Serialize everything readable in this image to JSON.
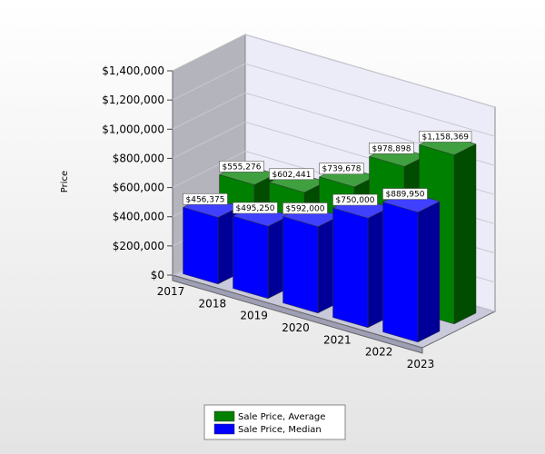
{
  "chart_data": {
    "type": "bar3d",
    "y_label": "Price",
    "xticks": [
      2017,
      2018,
      2019,
      2020,
      2021,
      2022,
      2023
    ],
    "ylim": [
      0,
      1400000
    ],
    "yticks": [
      {
        "value": 0,
        "label": "$0"
      },
      {
        "value": 200000,
        "label": "$200,000"
      },
      {
        "value": 400000,
        "label": "$400,000"
      },
      {
        "value": 600000,
        "label": "$600,000"
      },
      {
        "value": 800000,
        "label": "$800,000"
      },
      {
        "value": 1000000,
        "label": "$1,000,000"
      },
      {
        "value": 1200000,
        "label": "$1,200,000"
      },
      {
        "value": 1400000,
        "label": "$1,400,000"
      }
    ],
    "grid": true,
    "series": [
      {
        "name": "Sale Price, Average",
        "color": "#008000",
        "values": [
          555276,
          602441,
          739678,
          978898,
          1158369
        ],
        "value_labels": [
          "$555,276",
          "$602,441",
          "$739,678",
          "$978,898",
          "$1,158,369"
        ]
      },
      {
        "name": "Sale Price, Median",
        "color": "#0000ff",
        "values": [
          456375,
          495250,
          592000,
          750000,
          889950
        ],
        "value_labels": [
          "$456,375",
          "$495,250",
          "$592,000",
          "$750,000",
          "$889,950"
        ]
      }
    ]
  }
}
